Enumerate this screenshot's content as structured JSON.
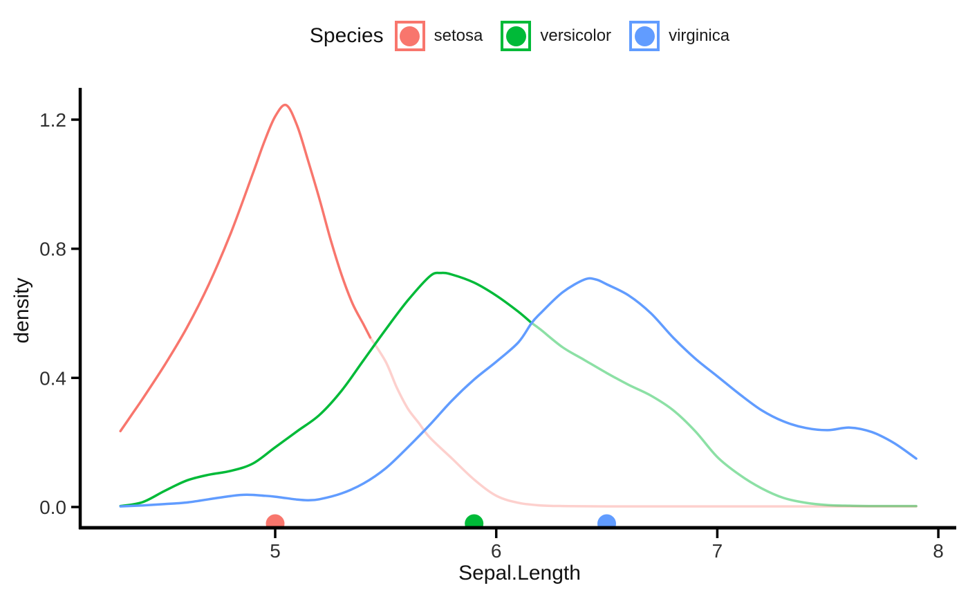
{
  "legend": {
    "title": "Species",
    "items": [
      {
        "label": "setosa",
        "color": "#F8766D"
      },
      {
        "label": "versicolor",
        "color": "#00BA38"
      },
      {
        "label": "virginica",
        "color": "#619CFF"
      }
    ]
  },
  "axes": {
    "x": {
      "label": "Sepal.Length",
      "ticks": [
        5,
        6,
        7,
        8
      ],
      "range": [
        4.12,
        8.08
      ]
    },
    "y": {
      "label": "density",
      "ticks": [
        "0.0",
        "0.4",
        "0.8",
        "1.2"
      ],
      "tick_values": [
        0.0,
        0.4,
        0.8,
        1.2
      ],
      "range": [
        0,
        1.3
      ]
    }
  },
  "chart_data": {
    "type": "line",
    "subtype": "kernel-density",
    "title": "",
    "xlabel": "Sepal.Length",
    "ylabel": "density",
    "xlim": [
      4.12,
      8.08
    ],
    "ylim": [
      0,
      1.3
    ],
    "grid": false,
    "legend_position": "top",
    "series": [
      {
        "name": "setosa",
        "color": "#F8766D",
        "median_x": 5.0,
        "fade_after_x": 5.43,
        "fade_opacity": 0.34,
        "points": [
          [
            4.3,
            0.235
          ],
          [
            4.35,
            0.285
          ],
          [
            4.4,
            0.335
          ],
          [
            4.5,
            0.44
          ],
          [
            4.6,
            0.555
          ],
          [
            4.7,
            0.69
          ],
          [
            4.8,
            0.85
          ],
          [
            4.9,
            1.035
          ],
          [
            4.95,
            1.13
          ],
          [
            5.0,
            1.21
          ],
          [
            5.05,
            1.245
          ],
          [
            5.1,
            1.18
          ],
          [
            5.15,
            1.07
          ],
          [
            5.2,
            0.955
          ],
          [
            5.25,
            0.83
          ],
          [
            5.3,
            0.72
          ],
          [
            5.35,
            0.63
          ],
          [
            5.4,
            0.565
          ],
          [
            5.43,
            0.525
          ],
          [
            5.5,
            0.45
          ],
          [
            5.55,
            0.37
          ],
          [
            5.6,
            0.305
          ],
          [
            5.65,
            0.26
          ],
          [
            5.7,
            0.215
          ],
          [
            5.8,
            0.15
          ],
          [
            5.9,
            0.085
          ],
          [
            6.0,
            0.035
          ],
          [
            6.1,
            0.013
          ],
          [
            6.2,
            0.005
          ],
          [
            6.3,
            0.003
          ],
          [
            6.5,
            0.002
          ],
          [
            7.0,
            0.002
          ],
          [
            7.5,
            0.002
          ],
          [
            7.9,
            0.002
          ]
        ]
      },
      {
        "name": "versicolor",
        "color": "#00BA38",
        "median_x": 5.9,
        "fade_after_x": 6.16,
        "fade_opacity": 0.45,
        "points": [
          [
            4.3,
            0.003
          ],
          [
            4.4,
            0.015
          ],
          [
            4.5,
            0.05
          ],
          [
            4.6,
            0.082
          ],
          [
            4.7,
            0.1
          ],
          [
            4.8,
            0.112
          ],
          [
            4.9,
            0.135
          ],
          [
            5.0,
            0.185
          ],
          [
            5.1,
            0.235
          ],
          [
            5.2,
            0.285
          ],
          [
            5.3,
            0.36
          ],
          [
            5.4,
            0.455
          ],
          [
            5.5,
            0.55
          ],
          [
            5.6,
            0.64
          ],
          [
            5.7,
            0.715
          ],
          [
            5.75,
            0.725
          ],
          [
            5.8,
            0.72
          ],
          [
            5.9,
            0.695
          ],
          [
            6.0,
            0.655
          ],
          [
            6.1,
            0.605
          ],
          [
            6.16,
            0.57
          ],
          [
            6.2,
            0.55
          ],
          [
            6.3,
            0.495
          ],
          [
            6.4,
            0.455
          ],
          [
            6.5,
            0.415
          ],
          [
            6.6,
            0.378
          ],
          [
            6.7,
            0.345
          ],
          [
            6.8,
            0.3
          ],
          [
            6.9,
            0.235
          ],
          [
            7.0,
            0.155
          ],
          [
            7.1,
            0.1
          ],
          [
            7.2,
            0.058
          ],
          [
            7.3,
            0.028
          ],
          [
            7.4,
            0.013
          ],
          [
            7.5,
            0.006
          ],
          [
            7.6,
            0.004
          ],
          [
            7.7,
            0.003
          ],
          [
            7.8,
            0.003
          ],
          [
            7.9,
            0.003
          ]
        ]
      },
      {
        "name": "virginica",
        "color": "#619CFF",
        "median_x": 6.5,
        "fade_after_x": null,
        "fade_opacity": 1,
        "points": [
          [
            4.3,
            0.002
          ],
          [
            4.4,
            0.005
          ],
          [
            4.5,
            0.009
          ],
          [
            4.6,
            0.014
          ],
          [
            4.7,
            0.024
          ],
          [
            4.8,
            0.034
          ],
          [
            4.87,
            0.038
          ],
          [
            4.95,
            0.035
          ],
          [
            5.0,
            0.032
          ],
          [
            5.1,
            0.023
          ],
          [
            5.15,
            0.021
          ],
          [
            5.2,
            0.024
          ],
          [
            5.3,
            0.042
          ],
          [
            5.4,
            0.073
          ],
          [
            5.5,
            0.12
          ],
          [
            5.6,
            0.185
          ],
          [
            5.7,
            0.255
          ],
          [
            5.8,
            0.33
          ],
          [
            5.9,
            0.395
          ],
          [
            6.0,
            0.45
          ],
          [
            6.1,
            0.51
          ],
          [
            6.16,
            0.57
          ],
          [
            6.2,
            0.6
          ],
          [
            6.3,
            0.665
          ],
          [
            6.4,
            0.705
          ],
          [
            6.45,
            0.705
          ],
          [
            6.5,
            0.69
          ],
          [
            6.6,
            0.655
          ],
          [
            6.7,
            0.6
          ],
          [
            6.8,
            0.525
          ],
          [
            6.9,
            0.46
          ],
          [
            7.0,
            0.405
          ],
          [
            7.1,
            0.35
          ],
          [
            7.2,
            0.3
          ],
          [
            7.3,
            0.265
          ],
          [
            7.4,
            0.245
          ],
          [
            7.5,
            0.238
          ],
          [
            7.6,
            0.246
          ],
          [
            7.7,
            0.232
          ],
          [
            7.8,
            0.198
          ],
          [
            7.9,
            0.15
          ]
        ]
      }
    ],
    "style": {
      "line_width": 3.5,
      "axis_color": "#000000",
      "tick_text_color": "#303030",
      "background": "#ffffff"
    }
  }
}
